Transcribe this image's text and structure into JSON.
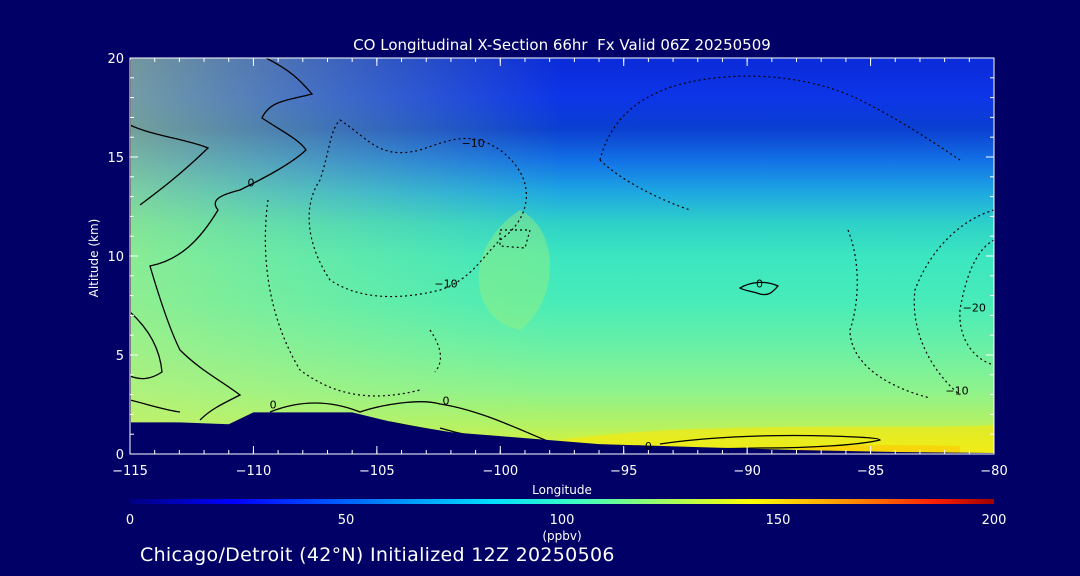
{
  "chart_data": {
    "type": "heatmap",
    "title": "CO Longitudinal X-Section 66hr  Fx Valid 06Z 20250509",
    "xlabel": "Longitude",
    "ylabel": "Altitude (km)",
    "xlim": [
      -115,
      -80
    ],
    "ylim": [
      0,
      20
    ],
    "x_ticks": [
      -115,
      -110,
      -105,
      -100,
      -95,
      -90,
      -85,
      -80
    ],
    "x_tick_labels": [
      "−115",
      "−110",
      "−105",
      "−100",
      "−95",
      "−90",
      "−85",
      "−80"
    ],
    "y_ticks": [
      0,
      5,
      10,
      15,
      20
    ],
    "colorbar": {
      "label": "(ppbv)",
      "range": [
        0,
        200
      ],
      "ticks": [
        0,
        50,
        100,
        150,
        200
      ]
    },
    "contour_labels": [
      {
        "text": "0",
        "lon": -110.1,
        "alt": 13.5
      },
      {
        "text": "−10",
        "lon": -101.1,
        "alt": 15.5
      },
      {
        "text": "−10",
        "lon": -102.2,
        "alt": 8.4
      },
      {
        "text": "0",
        "lon": -89.5,
        "alt": 8.4
      },
      {
        "text": "−20",
        "lon": -80.8,
        "alt": 7.2
      },
      {
        "text": "−10",
        "lon": -81.5,
        "alt": 3.0
      },
      {
        "text": "0",
        "lon": -109.2,
        "alt": 2.3
      },
      {
        "text": "0",
        "lon": -102.2,
        "alt": 2.5
      },
      {
        "text": "0",
        "lon": -94,
        "alt": 0.2
      }
    ],
    "terrain": [
      {
        "lon": -115,
        "alt": 1.6
      },
      {
        "lon": -113,
        "alt": 1.6
      },
      {
        "lon": -111,
        "alt": 1.5
      },
      {
        "lon": -110,
        "alt": 2.1
      },
      {
        "lon": -106,
        "alt": 2.1
      },
      {
        "lon": -104,
        "alt": 1.5
      },
      {
        "lon": -102,
        "alt": 1.1
      },
      {
        "lon": -100,
        "alt": 0.9
      },
      {
        "lon": -96,
        "alt": 0.5
      },
      {
        "lon": -92,
        "alt": 0.35
      },
      {
        "lon": -88,
        "alt": 0.2
      },
      {
        "lon": -84,
        "alt": 0.1
      },
      {
        "lon": -80,
        "alt": 0.05
      }
    ]
  },
  "footer": {
    "text": "Chicago/Detroit (42°N) Initialized 12Z 20250506"
  }
}
